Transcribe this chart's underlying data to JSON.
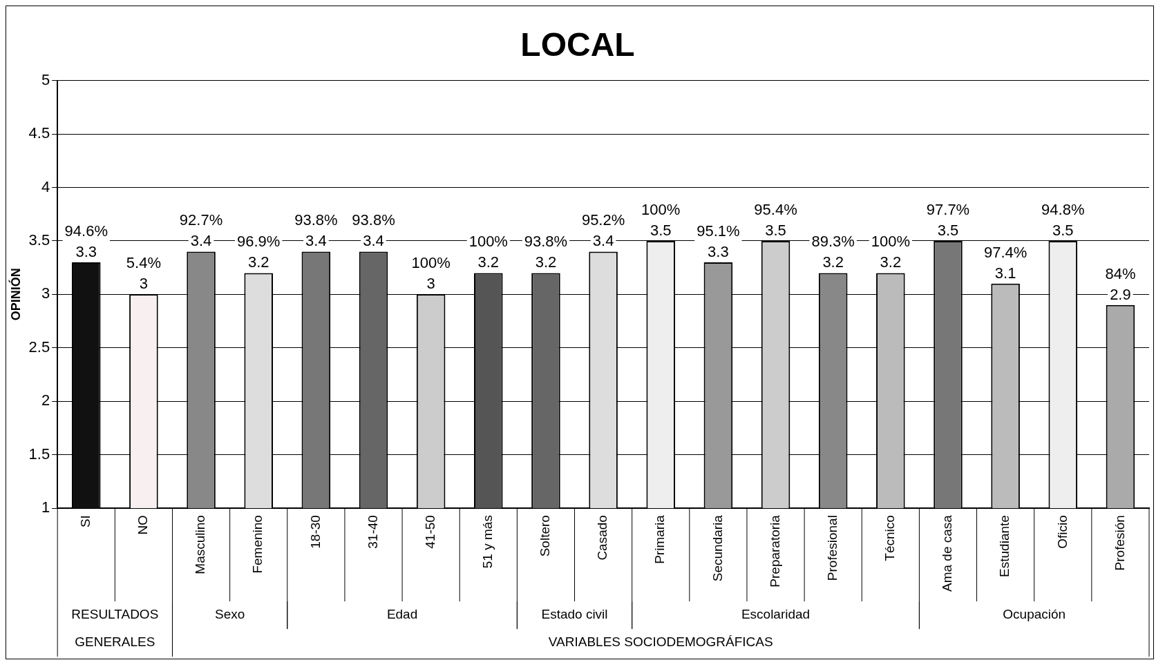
{
  "chart_data": {
    "type": "bar",
    "title": "LOCAL",
    "ylabel": "OPINIÓN",
    "categories": [
      "SI",
      "NO",
      "Masculino",
      "Femenino",
      "18-30",
      "31-40",
      "41-50",
      "51 y más",
      "Soltero",
      "Casado",
      "Primaria",
      "Secundaria",
      "Preparatoria",
      "Profesional",
      "Técnico",
      "Ama de casa",
      "Estudiante",
      "Oficio",
      "Profesión"
    ],
    "values": [
      3.3,
      3,
      3.4,
      3.2,
      3.4,
      3.4,
      3,
      3.2,
      3.2,
      3.4,
      3.5,
      3.3,
      3.5,
      3.2,
      3.2,
      3.5,
      3.1,
      3.5,
      2.9
    ],
    "value_labels": [
      "94.6%\n3.3",
      "5.4%\n3",
      "92.7%\n3.4",
      "96.9%\n3.2",
      "93.8%\n3.4",
      "93.8%\n3.4",
      "100%\n3",
      "100%\n3.2",
      "93.8%\n3.2",
      "95.2%\n3.4",
      "100%\n3.5",
      "95.1%\n3.3",
      "95.4%\n3.5",
      "89.3%\n3.2",
      "100%\n3.2",
      "97.7%\n3.5",
      "97.4%\n3.1",
      "94.8%\n3.5",
      "84%\n2.9"
    ],
    "colors": [
      "#111111",
      "#f8f0f0",
      "#888888",
      "#dddddd",
      "#777777",
      "#666666",
      "#cccccc",
      "#555555",
      "#666666",
      "#dddddd",
      "#eeeeee",
      "#999999",
      "#cccccc",
      "#888888",
      "#bbbbbb",
      "#777777",
      "#bbbbbb",
      "#eeeeee",
      "#aaaaaa"
    ],
    "ylim": [
      1,
      5
    ],
    "yticks": [
      1,
      1.5,
      2,
      2.5,
      3,
      3.5,
      4,
      4.5,
      5
    ],
    "grid": "y",
    "legend": false,
    "annotations": [
      "RESULTADOS GENERALES",
      "Sexo",
      "Edad",
      "Estado civil",
      "Escolaridad",
      "Ocupación",
      "VARIABLES SOCIODEMOGRÁFICAS"
    ]
  }
}
